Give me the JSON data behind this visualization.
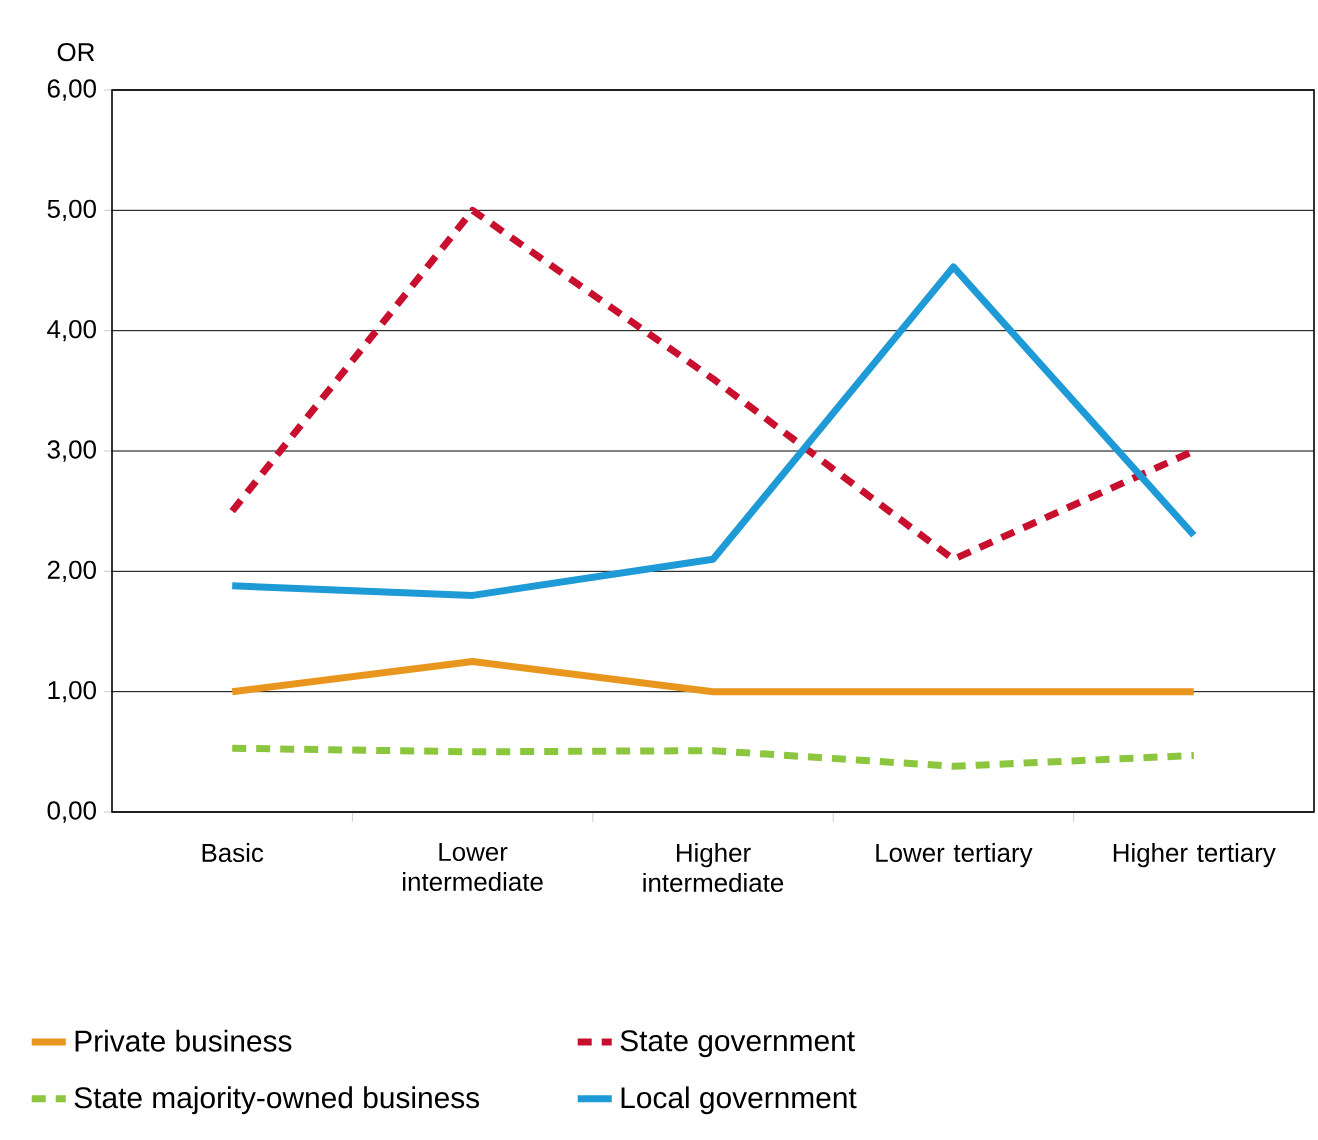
{
  "chart_data": {
    "type": "line",
    "ylabel": "OR",
    "categories": [
      "Basic",
      "Lower intermediate",
      "Higher intermediate",
      "Lower tertiary",
      "Higher tertiary"
    ],
    "series": [
      {
        "name": "Private business",
        "color": "#e8961e",
        "line_style": "solid",
        "values": [
          1.0,
          1.25,
          1.0,
          1.0,
          1.0
        ]
      },
      {
        "name": "State government",
        "color": "#c8102e",
        "line_style": "dashed",
        "values": [
          2.5,
          5.0,
          3.6,
          2.1,
          3.0
        ]
      },
      {
        "name": "State majority-owned business",
        "color": "#8cc63f",
        "line_style": "dashed",
        "values": [
          0.53,
          0.5,
          0.51,
          0.38,
          0.47
        ]
      },
      {
        "name": "Local government",
        "color": "#1e9ad6",
        "line_style": "solid",
        "values": [
          1.88,
          1.8,
          2.1,
          4.53,
          2.3
        ]
      }
    ],
    "ylim": [
      0,
      6
    ],
    "yticks": [
      {
        "value": 0,
        "label": "0,00"
      },
      {
        "value": 1,
        "label": "1,00"
      },
      {
        "value": 2,
        "label": "2,00"
      },
      {
        "value": 3,
        "label": "3,00"
      },
      {
        "value": 4,
        "label": "4,00"
      },
      {
        "value": 5,
        "label": "5,00"
      },
      {
        "value": 6,
        "label": "6,00"
      }
    ],
    "grid": "y",
    "legend": "bottom",
    "marker": "none"
  }
}
